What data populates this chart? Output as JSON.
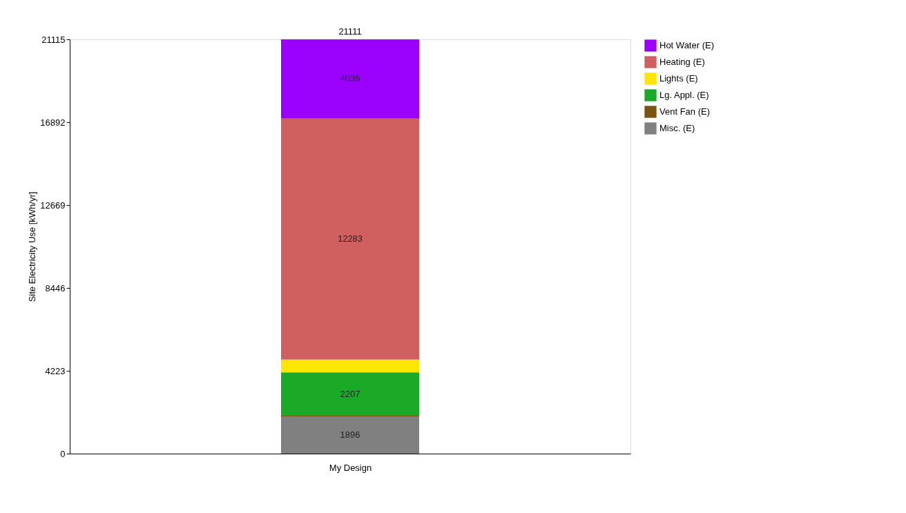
{
  "chart_data": {
    "type": "bar",
    "stacked": true,
    "ylabel": "Site Electricity Use [kWh/yr]",
    "categories": [
      "My Design"
    ],
    "series": [
      {
        "name": "Misc. (E)",
        "color": "#808080",
        "values": [
          1896
        ],
        "value_labels": [
          "1896"
        ]
      },
      {
        "name": "Vent Fan (E)",
        "color": "#7a5410",
        "values": [
          40
        ],
        "value_labels": [
          null
        ]
      },
      {
        "name": "Lg. Appl. (E)",
        "color": "#1aaa28",
        "values": [
          2207
        ],
        "value_labels": [
          "2207"
        ]
      },
      {
        "name": "Lights (E)",
        "color": "#ffe600",
        "values": [
          650
        ],
        "value_labels": [
          null
        ]
      },
      {
        "name": "Heating (E)",
        "color": "#d06060",
        "values": [
          12283
        ],
        "value_labels": [
          "12283"
        ]
      },
      {
        "name": "Hot Water (E)",
        "color": "#9b00ff",
        "values": [
          4036
        ],
        "value_labels": [
          "4036"
        ]
      }
    ],
    "totals": [
      "21111"
    ],
    "ylim": [
      0,
      21115
    ],
    "yticks": [
      0,
      4223,
      8446,
      12669,
      16892,
      21115
    ],
    "grid": false,
    "legend": "right"
  }
}
